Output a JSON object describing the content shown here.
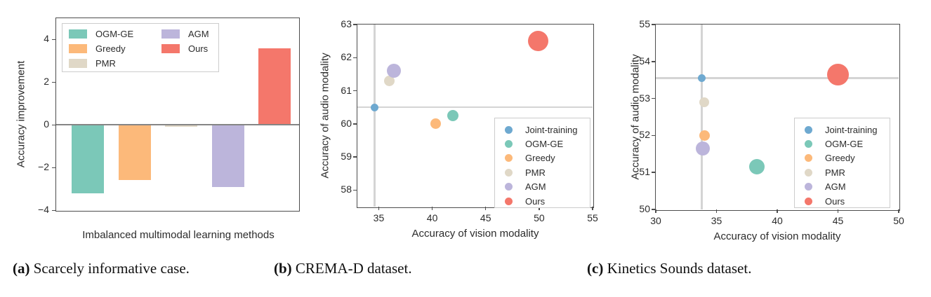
{
  "colors": {
    "axis_border": "#4d4d4d",
    "tick_text": "#2b2b2b",
    "zero_line": "#858585",
    "crosshair": "#d4d4d4",
    "legend_border": "#cccccc",
    "series": {
      "Joint-training": "#6ea9d0",
      "OGM-GE": "#7bc8b8",
      "Greedy": "#fcb97a",
      "PMR": "#e0d8c7",
      "AGM": "#bcb5db",
      "Ours": "#f4776b"
    }
  },
  "chart_data": [
    {
      "type": "bar",
      "title": "",
      "xlabel": "Imbalanced multimodal learning methods",
      "ylabel": "Accuracy improvement",
      "categories": [
        "OGM-GE",
        "Greedy",
        "PMR",
        "AGM",
        "Ours"
      ],
      "values": [
        -3.2,
        -2.6,
        -0.1,
        -2.9,
        3.6
      ],
      "ylim": [
        -4,
        5
      ],
      "yticks": [
        -4,
        -2,
        0,
        2,
        4
      ],
      "zero_line": 0,
      "grid": false,
      "legend_position": "upper-left",
      "legend_columns": [
        [
          "OGM-GE",
          "Greedy",
          "PMR"
        ],
        [
          "AGM",
          "Ours"
        ]
      ]
    },
    {
      "type": "scatter",
      "title": "",
      "xlabel": "Accuracy of vision modality",
      "ylabel": "Accuracy of audio modality",
      "xlim": [
        33,
        55
      ],
      "xticks": [
        35,
        40,
        45,
        50,
        55
      ],
      "ylim": [
        57.5,
        63
      ],
      "yticks": [
        58,
        59,
        60,
        61,
        62,
        63
      ],
      "crosshair": {
        "x": 34.6,
        "y": 60.5
      },
      "grid": false,
      "legend_position": "lower-right",
      "legend": [
        "Joint-training",
        "OGM-GE",
        "Greedy",
        "PMR",
        "AGM",
        "Ours"
      ],
      "points": [
        {
          "name": "Joint-training",
          "x": 34.6,
          "y": 60.5,
          "r": 5.5
        },
        {
          "name": "OGM-GE",
          "x": 41.9,
          "y": 60.25,
          "r": 8
        },
        {
          "name": "Greedy",
          "x": 40.3,
          "y": 60.0,
          "r": 7.5
        },
        {
          "name": "PMR",
          "x": 36.0,
          "y": 61.3,
          "r": 7.5
        },
        {
          "name": "AGM",
          "x": 36.4,
          "y": 61.6,
          "r": 10
        },
        {
          "name": "Ours",
          "x": 49.9,
          "y": 62.5,
          "r": 14.5
        }
      ]
    },
    {
      "type": "scatter",
      "title": "",
      "xlabel": "Accuracy of vision modality",
      "ylabel": "Accuracy of audio modality",
      "xlim": [
        30,
        50
      ],
      "xticks": [
        30,
        35,
        40,
        45,
        50
      ],
      "ylim": [
        50,
        55
      ],
      "yticks": [
        50,
        51,
        52,
        53,
        54,
        55
      ],
      "crosshair": {
        "x": 33.8,
        "y": 53.55
      },
      "grid": false,
      "legend_position": "center-right",
      "legend": [
        "Joint-training",
        "OGM-GE",
        "Greedy",
        "PMR",
        "AGM",
        "Ours"
      ],
      "points": [
        {
          "name": "Joint-training",
          "x": 33.8,
          "y": 53.55,
          "r": 5.5
        },
        {
          "name": "OGM-GE",
          "x": 38.3,
          "y": 51.15,
          "r": 11
        },
        {
          "name": "Greedy",
          "x": 34.0,
          "y": 52.0,
          "r": 7.5
        },
        {
          "name": "PMR",
          "x": 34.0,
          "y": 52.9,
          "r": 7
        },
        {
          "name": "AGM",
          "x": 33.9,
          "y": 51.65,
          "r": 10
        },
        {
          "name": "Ours",
          "x": 45.0,
          "y": 53.65,
          "r": 15.5
        }
      ]
    }
  ],
  "captions": [
    {
      "bold": "(a)",
      "text": "Scarcely informative case."
    },
    {
      "bold": "(b)",
      "text": "CREMA-D dataset."
    },
    {
      "bold": "(c)",
      "text": "Kinetics Sounds dataset."
    }
  ]
}
